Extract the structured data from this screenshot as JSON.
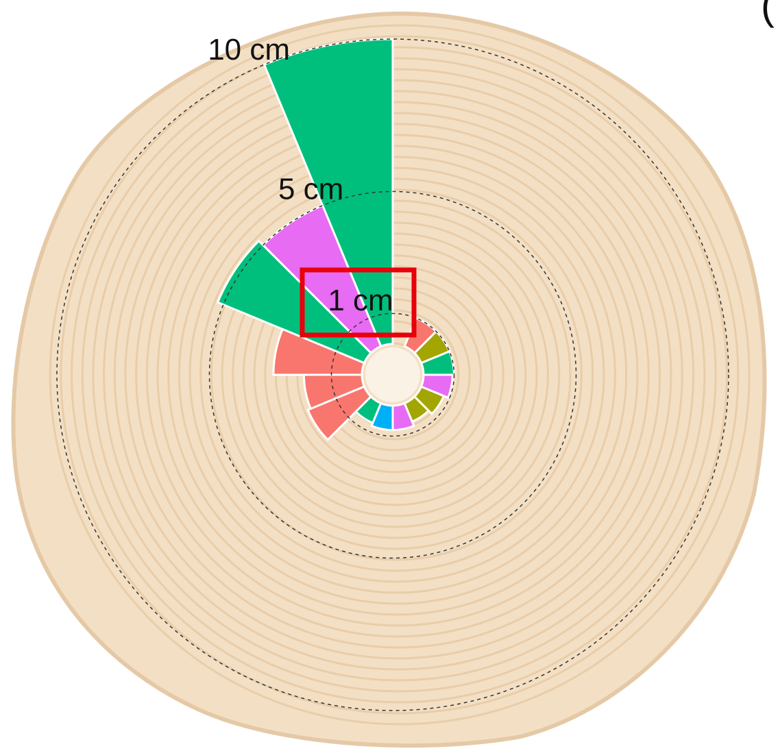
{
  "chart_data": {
    "type": "radial_bar",
    "fragment": "(",
    "values": [
      10,
      5,
      5.2,
      2.9,
      1.9,
      2,
      0.7,
      0.8,
      0.8,
      0.65,
      0.8,
      0.95,
      1,
      1,
      1
    ],
    "colors": [
      "#00bf7d",
      "#e76bf3",
      "#00bf7d",
      "#f8766d",
      "#f8766d",
      "#f8766d",
      "#00bf7d",
      "#00b0f6",
      "#e76bf3",
      "#a3a500",
      "#a3a500",
      "#e76bf3",
      "#00bf7d",
      "#a3a500",
      "#f8766d"
    ],
    "rlim": [
      0,
      10
    ],
    "rticks": [
      {
        "value": 1,
        "label": "1 cm"
      },
      {
        "value": 5,
        "label": "5 cm"
      },
      {
        "value": 10,
        "label": "10 cm"
      }
    ],
    "grid": true
  }
}
